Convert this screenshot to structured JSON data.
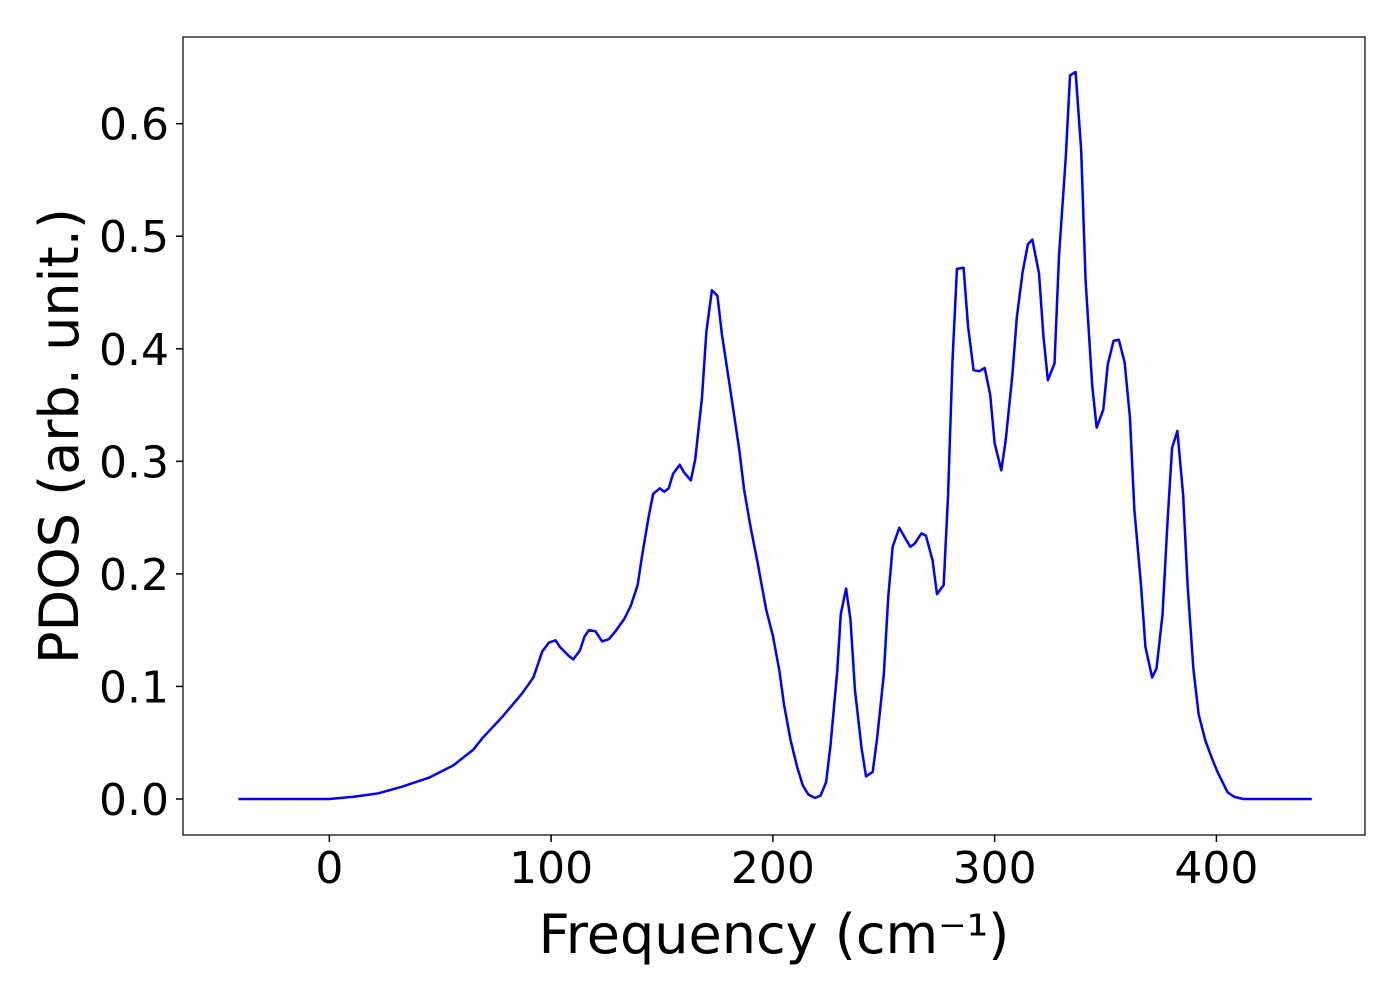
{
  "chart_data": {
    "type": "line",
    "xlabel": "Frequency (cm⁻¹)",
    "ylabel": "PDOS (arb. unit.)",
    "xlim": [
      -66,
      467
    ],
    "ylim": [
      -0.032,
      0.677
    ],
    "xticks": [
      0,
      100,
      200,
      300,
      400
    ],
    "yticks": [
      {
        "value": 0,
        "label": "0.0"
      },
      0.1,
      0.2,
      0.3,
      0.4,
      0.5,
      0.6
    ],
    "grid": false,
    "x": [
      -41,
      0,
      11,
      22,
      33,
      45,
      56,
      65,
      69,
      78,
      87,
      92,
      96,
      99,
      102,
      104,
      108,
      110,
      113,
      115,
      117,
      120,
      123,
      126,
      129,
      133,
      136,
      139,
      141,
      144,
      146,
      149,
      151,
      153,
      155,
      158,
      160,
      163,
      165,
      168,
      170,
      172.5,
      175,
      177,
      182,
      185,
      187,
      190,
      193,
      197,
      200,
      203,
      205,
      208,
      211,
      213.5,
      216,
      219,
      221.5,
      224,
      226,
      229,
      230.6,
      233,
      235,
      237,
      240,
      242,
      245,
      247,
      250,
      252,
      254,
      257,
      259,
      262,
      264,
      267,
      269,
      272,
      274,
      277,
      279,
      281,
      283,
      286,
      288,
      290.5,
      293,
      295.5,
      298,
      300,
      303,
      305,
      308,
      310,
      312.6,
      315,
      317,
      320,
      322,
      324,
      327,
      329,
      332,
      334,
      336.5,
      339,
      341,
      344,
      346,
      349,
      351,
      353.6,
      356,
      358.6,
      361,
      363,
      366,
      368,
      371,
      373,
      375.7,
      378,
      380,
      382.4,
      385,
      387,
      389.6,
      392,
      395,
      398,
      400.5,
      403,
      405,
      408,
      412,
      443
    ],
    "series": [
      {
        "name": "PDOS",
        "color": "#0000ff",
        "values": [
          0,
          0,
          0.002,
          0.005,
          0.011,
          0.019,
          0.03,
          0.044,
          0.054,
          0.073,
          0.094,
          0.108,
          0.131,
          0.139,
          0.141,
          0.135,
          0.127,
          0.124,
          0.132,
          0.144,
          0.15,
          0.149,
          0.14,
          0.142,
          0.149,
          0.16,
          0.172,
          0.19,
          0.216,
          0.251,
          0.271,
          0.276,
          0.273,
          0.276,
          0.289,
          0.297,
          0.29,
          0.283,
          0.302,
          0.356,
          0.415,
          0.452,
          0.447,
          0.413,
          0.348,
          0.308,
          0.275,
          0.241,
          0.211,
          0.168,
          0.145,
          0.113,
          0.084,
          0.052,
          0.028,
          0.012,
          0.004,
          0.001,
          0.003,
          0.015,
          0.048,
          0.113,
          0.164,
          0.187,
          0.159,
          0.097,
          0.045,
          0.02,
          0.024,
          0.054,
          0.11,
          0.179,
          0.224,
          0.241,
          0.234,
          0.224,
          0.227,
          0.236,
          0.234,
          0.212,
          0.182,
          0.19,
          0.27,
          0.39,
          0.471,
          0.472,
          0.42,
          0.381,
          0.38,
          0.383,
          0.359,
          0.316,
          0.292,
          0.319,
          0.377,
          0.428,
          0.468,
          0.493,
          0.497,
          0.467,
          0.411,
          0.372,
          0.387,
          0.482,
          0.568,
          0.643,
          0.646,
          0.577,
          0.461,
          0.367,
          0.33,
          0.346,
          0.386,
          0.407,
          0.408,
          0.388,
          0.339,
          0.257,
          0.19,
          0.135,
          0.108,
          0.116,
          0.164,
          0.248,
          0.312,
          0.327,
          0.27,
          0.19,
          0.116,
          0.075,
          0.052,
          0.036,
          0.024,
          0.014,
          0.006,
          0.002,
          0,
          0
        ]
      }
    ]
  }
}
